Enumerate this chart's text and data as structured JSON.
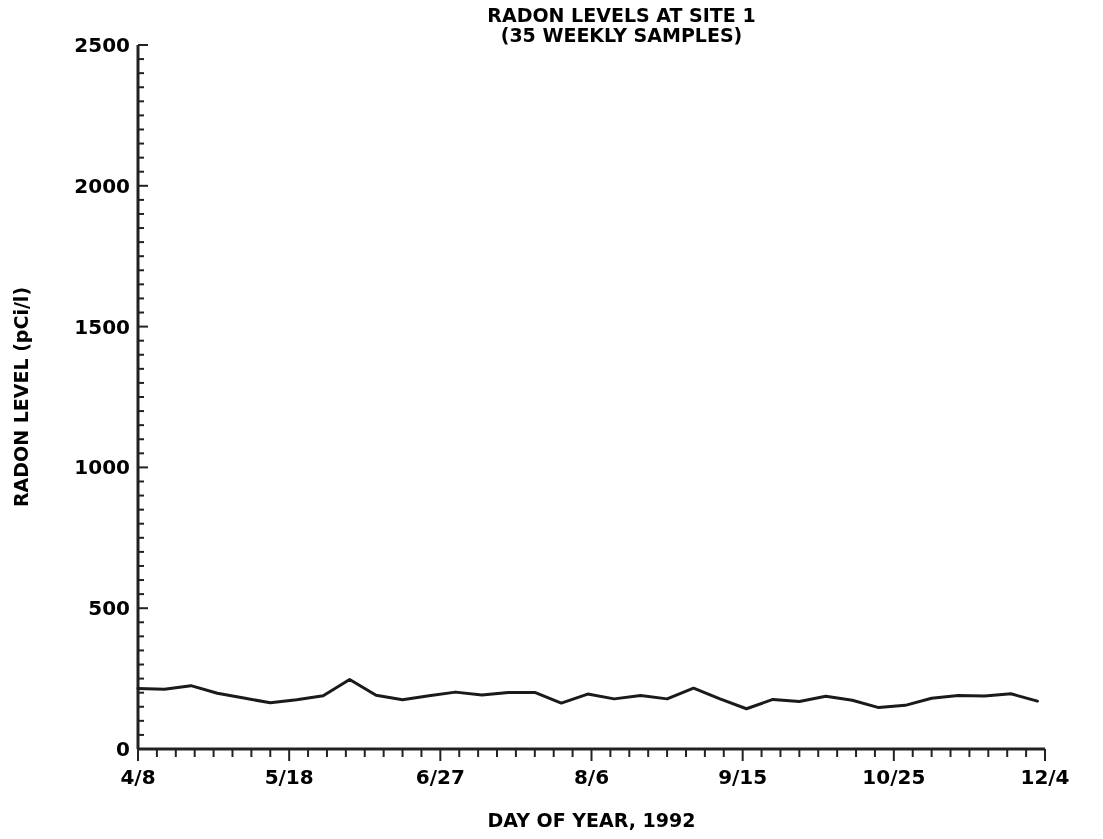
{
  "chart_data": {
    "type": "line",
    "title": "RADON LEVELS AT SITE 1",
    "subtitle": "(35 WEEKLY SAMPLES)",
    "xlabel": "DAY OF YEAR, 1992",
    "ylabel": "RADON LEVEL (pCi/l)",
    "x": [
      "1992-04-08",
      "1992-04-15",
      "1992-04-22",
      "1992-04-29",
      "1992-05-06",
      "1992-05-13",
      "1992-05-20",
      "1992-05-27",
      "1992-06-03",
      "1992-06-10",
      "1992-06-17",
      "1992-06-24",
      "1992-07-01",
      "1992-07-08",
      "1992-07-15",
      "1992-07-22",
      "1992-07-29",
      "1992-08-05",
      "1992-08-12",
      "1992-08-19",
      "1992-08-26",
      "1992-09-02",
      "1992-09-09",
      "1992-09-16",
      "1992-09-23",
      "1992-09-30",
      "1992-10-07",
      "1992-10-14",
      "1992-10-21",
      "1992-10-28",
      "1992-11-04",
      "1992-11-11",
      "1992-11-18",
      "1992-11-25",
      "1992-12-02"
    ],
    "series": [
      {
        "color": "#1a1a1a",
        "values": [
          215,
          212,
          225,
          198,
          181,
          164,
          175,
          189,
          247,
          191,
          175,
          189,
          202,
          192,
          201,
          201,
          163,
          195,
          178,
          190,
          178,
          216,
          178,
          143,
          176,
          169,
          187,
          173,
          147,
          155,
          180,
          190,
          188,
          196,
          170
        ]
      }
    ],
    "xlim": [
      "1992-04-08",
      "1992-12-04"
    ],
    "xticks": [
      {
        "value": "1992-04-08",
        "label": "4/8"
      },
      {
        "value": "1992-04-13",
        "label": null
      },
      {
        "value": "1992-04-18",
        "label": null
      },
      {
        "value": "1992-04-23",
        "label": null
      },
      {
        "value": "1992-04-28",
        "label": null
      },
      {
        "value": "1992-05-03",
        "label": null
      },
      {
        "value": "1992-05-08",
        "label": null
      },
      {
        "value": "1992-05-13",
        "label": null
      },
      {
        "value": "1992-05-18",
        "label": "5/18"
      },
      {
        "value": "1992-05-23",
        "label": null
      },
      {
        "value": "1992-05-28",
        "label": null
      },
      {
        "value": "1992-06-02",
        "label": null
      },
      {
        "value": "1992-06-07",
        "label": null
      },
      {
        "value": "1992-06-12",
        "label": null
      },
      {
        "value": "1992-06-17",
        "label": null
      },
      {
        "value": "1992-06-22",
        "label": null
      },
      {
        "value": "1992-06-27",
        "label": "6/27"
      },
      {
        "value": "1992-07-02",
        "label": null
      },
      {
        "value": "1992-07-07",
        "label": null
      },
      {
        "value": "1992-07-12",
        "label": null
      },
      {
        "value": "1992-07-17",
        "label": null
      },
      {
        "value": "1992-07-22",
        "label": null
      },
      {
        "value": "1992-07-27",
        "label": null
      },
      {
        "value": "1992-08-01",
        "label": null
      },
      {
        "value": "1992-08-06",
        "label": "8/6"
      },
      {
        "value": "1992-08-11",
        "label": null
      },
      {
        "value": "1992-08-16",
        "label": null
      },
      {
        "value": "1992-08-21",
        "label": null
      },
      {
        "value": "1992-08-26",
        "label": null
      },
      {
        "value": "1992-08-31",
        "label": null
      },
      {
        "value": "1992-09-05",
        "label": null
      },
      {
        "value": "1992-09-10",
        "label": null
      },
      {
        "value": "1992-09-15",
        "label": "9/15"
      },
      {
        "value": "1992-09-20",
        "label": null
      },
      {
        "value": "1992-09-25",
        "label": null
      },
      {
        "value": "1992-09-30",
        "label": null
      },
      {
        "value": "1992-10-05",
        "label": null
      },
      {
        "value": "1992-10-10",
        "label": null
      },
      {
        "value": "1992-10-15",
        "label": null
      },
      {
        "value": "1992-10-20",
        "label": null
      },
      {
        "value": "1992-10-25",
        "label": "10/25"
      },
      {
        "value": "1992-10-30",
        "label": null
      },
      {
        "value": "1992-11-04",
        "label": null
      },
      {
        "value": "1992-11-09",
        "label": null
      },
      {
        "value": "1992-11-14",
        "label": null
      },
      {
        "value": "1992-11-19",
        "label": null
      },
      {
        "value": "1992-11-24",
        "label": null
      },
      {
        "value": "1992-11-29",
        "label": null
      },
      {
        "value": "1992-12-04",
        "label": "12/4"
      }
    ],
    "ylim": [
      0,
      2500
    ],
    "yticks": [
      0,
      {
        "value": 50,
        "label": null
      },
      {
        "value": 100,
        "label": null
      },
      {
        "value": 150,
        "label": null
      },
      {
        "value": 200,
        "label": null
      },
      {
        "value": 250,
        "label": null
      },
      {
        "value": 300,
        "label": null
      },
      {
        "value": 350,
        "label": null
      },
      {
        "value": 400,
        "label": null
      },
      {
        "value": 450,
        "label": null
      },
      500,
      {
        "value": 550,
        "label": null
      },
      {
        "value": 600,
        "label": null
      },
      {
        "value": 650,
        "label": null
      },
      {
        "value": 700,
        "label": null
      },
      {
        "value": 750,
        "label": null
      },
      {
        "value": 800,
        "label": null
      },
      {
        "value": 850,
        "label": null
      },
      {
        "value": 900,
        "label": null
      },
      {
        "value": 950,
        "label": null
      },
      1000,
      {
        "value": 1050,
        "label": null
      },
      {
        "value": 1100,
        "label": null
      },
      {
        "value": 1150,
        "label": null
      },
      {
        "value": 1200,
        "label": null
      },
      {
        "value": 1250,
        "label": null
      },
      {
        "value": 1300,
        "label": null
      },
      {
        "value": 1350,
        "label": null
      },
      {
        "value": 1400,
        "label": null
      },
      {
        "value": 1450,
        "label": null
      },
      1500,
      {
        "value": 1550,
        "label": null
      },
      {
        "value": 1600,
        "label": null
      },
      {
        "value": 1650,
        "label": null
      },
      {
        "value": 1700,
        "label": null
      },
      {
        "value": 1750,
        "label": null
      },
      {
        "value": 1800,
        "label": null
      },
      {
        "value": 1850,
        "label": null
      },
      {
        "value": 1900,
        "label": null
      },
      {
        "value": 1950,
        "label": null
      },
      2000,
      {
        "value": 2050,
        "label": null
      },
      {
        "value": 2100,
        "label": null
      },
      {
        "value": 2150,
        "label": null
      },
      {
        "value": 2200,
        "label": null
      },
      {
        "value": 2250,
        "label": null
      },
      {
        "value": 2300,
        "label": null
      },
      {
        "value": 2350,
        "label": null
      },
      {
        "value": 2400,
        "label": null
      },
      {
        "value": 2450,
        "label": null
      },
      2500
    ],
    "grid": false,
    "marker": "none",
    "line_style": "solid"
  }
}
